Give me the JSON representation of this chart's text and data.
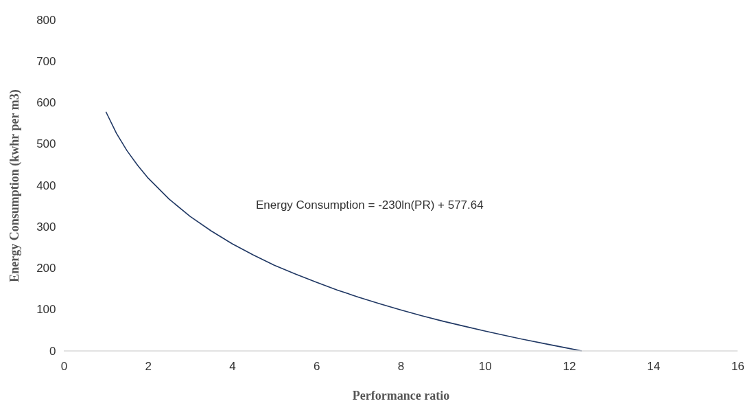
{
  "chart_data": {
    "type": "line",
    "xlabel": "Performance ratio",
    "ylabel": "Energy Consumption (kwhr per m3)",
    "annotations": [
      "Energy Consumption = -230ln(PR) + 577.64"
    ],
    "x": [
      1,
      1.25,
      1.5,
      1.75,
      2,
      2.5,
      3,
      3.5,
      4,
      4.5,
      5,
      5.5,
      6,
      6.5,
      7,
      7.5,
      8,
      8.5,
      9,
      9.5,
      10,
      10.5,
      11,
      11.5,
      12,
      12.3
    ],
    "series": [
      {
        "color": "#203864",
        "values": [
          578,
          526,
          484,
          449,
          418,
          367,
          325,
          290,
          259,
          232,
          207,
          186,
          166,
          147,
          130,
          114,
          99,
          85,
          72,
          60,
          48,
          37,
          26,
          16,
          6,
          0
        ]
      }
    ],
    "xlim": [
      0,
      16
    ],
    "xticks": [
      0,
      2,
      4,
      6,
      8,
      10,
      12,
      14,
      16
    ],
    "ylim": [
      0,
      800
    ],
    "yticks": [
      0,
      100,
      200,
      300,
      400,
      500,
      600,
      700,
      800
    ],
    "grid": false,
    "marker": "none",
    "line_style": "solid"
  }
}
